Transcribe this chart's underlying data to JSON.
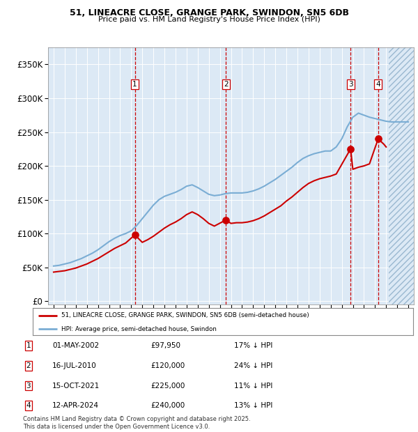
{
  "title1": "51, LINEACRE CLOSE, GRANGE PARK, SWINDON, SN5 6DB",
  "title2": "Price paid vs. HM Land Registry's House Price Index (HPI)",
  "yticks": [
    0,
    50000,
    100000,
    150000,
    200000,
    250000,
    300000,
    350000
  ],
  "ytick_labels": [
    "£0",
    "£50K",
    "£100K",
    "£150K",
    "£200K",
    "£250K",
    "£300K",
    "£350K"
  ],
  "xlim_start": 1994.5,
  "xlim_end": 2027.5,
  "ylim_min": -5000,
  "ylim_max": 375000,
  "plot_bg_color": "#dce9f5",
  "future_start": 2025.25,
  "sale_dates": [
    2002.33,
    2010.54,
    2021.79,
    2024.28
  ],
  "sale_prices": [
    97950,
    120000,
    225000,
    240000
  ],
  "sale_labels": [
    "1",
    "2",
    "3",
    "4"
  ],
  "vline_color": "#cc0000",
  "sale_marker_color": "#cc0000",
  "legend_label_red": "51, LINEACRE CLOSE, GRANGE PARK, SWINDON, SN5 6DB (semi-detached house)",
  "legend_label_blue": "HPI: Average price, semi-detached house, Swindon",
  "table_data": [
    [
      "1",
      "01-MAY-2002",
      "£97,950",
      "17% ↓ HPI"
    ],
    [
      "2",
      "16-JUL-2010",
      "£120,000",
      "24% ↓ HPI"
    ],
    [
      "3",
      "15-OCT-2021",
      "£225,000",
      "11% ↓ HPI"
    ],
    [
      "4",
      "12-APR-2024",
      "£240,000",
      "13% ↓ HPI"
    ]
  ],
  "footnote": "Contains HM Land Registry data © Crown copyright and database right 2025.\nThis data is licensed under the Open Government Licence v3.0.",
  "red_line_color": "#cc0000",
  "blue_line_color": "#7aadd4",
  "hpi_years": [
    1995,
    1995.5,
    1996,
    1996.5,
    1997,
    1997.5,
    1998,
    1998.5,
    1999,
    1999.5,
    2000,
    2000.5,
    2001,
    2001.5,
    2002,
    2002.5,
    2003,
    2003.5,
    2004,
    2004.5,
    2005,
    2005.5,
    2006,
    2006.5,
    2007,
    2007.5,
    2008,
    2008.5,
    2009,
    2009.5,
    2010,
    2010.5,
    2011,
    2011.5,
    2012,
    2012.5,
    2013,
    2013.5,
    2014,
    2014.5,
    2015,
    2015.5,
    2016,
    2016.5,
    2017,
    2017.5,
    2018,
    2018.5,
    2019,
    2019.5,
    2020,
    2020.5,
    2021,
    2021.5,
    2022,
    2022.5,
    2023,
    2023.5,
    2024,
    2024.5,
    2025,
    2025.5,
    2026,
    2026.5,
    2027
  ],
  "hpi_values": [
    52000,
    53000,
    55000,
    57000,
    60000,
    63000,
    67000,
    71000,
    76000,
    82000,
    88000,
    93000,
    97000,
    100000,
    104000,
    112000,
    122000,
    132000,
    142000,
    150000,
    155000,
    158000,
    161000,
    165000,
    170000,
    172000,
    168000,
    163000,
    158000,
    156000,
    157000,
    159000,
    160000,
    160000,
    160000,
    161000,
    163000,
    166000,
    170000,
    175000,
    180000,
    186000,
    192000,
    198000,
    205000,
    211000,
    215000,
    218000,
    220000,
    222000,
    222000,
    228000,
    240000,
    258000,
    272000,
    278000,
    275000,
    272000,
    270000,
    268000,
    266000,
    265000,
    265000,
    265000,
    265000
  ],
  "red_years": [
    1995,
    1995.5,
    1996,
    1996.5,
    1997,
    1997.5,
    1998,
    1998.5,
    1999,
    1999.5,
    2000,
    2000.5,
    2001,
    2001.5,
    2002.33,
    2003,
    2003.5,
    2004,
    2004.5,
    2005,
    2005.5,
    2006,
    2006.5,
    2007,
    2007.5,
    2008,
    2008.5,
    2009,
    2009.5,
    2010.54,
    2011,
    2011.5,
    2012,
    2012.5,
    2013,
    2013.5,
    2014,
    2014.5,
    2015,
    2015.5,
    2016,
    2016.5,
    2017,
    2017.5,
    2018,
    2018.5,
    2019,
    2019.5,
    2020,
    2020.5,
    2021.79,
    2022,
    2022.5,
    2023,
    2023.5,
    2024.28,
    2024.8,
    2025
  ],
  "red_values": [
    43000,
    44000,
    45000,
    47000,
    49000,
    52000,
    55000,
    59000,
    63000,
    68000,
    73000,
    78000,
    82000,
    86000,
    97950,
    87000,
    91000,
    96000,
    102000,
    108000,
    113000,
    117000,
    122000,
    128000,
    132000,
    128000,
    122000,
    115000,
    111000,
    120000,
    115000,
    116000,
    116000,
    117000,
    119000,
    122000,
    126000,
    131000,
    136000,
    141000,
    148000,
    154000,
    161000,
    168000,
    174000,
    178000,
    181000,
    183000,
    185000,
    188000,
    225000,
    195000,
    198000,
    200000,
    203000,
    240000,
    232000,
    228000
  ]
}
